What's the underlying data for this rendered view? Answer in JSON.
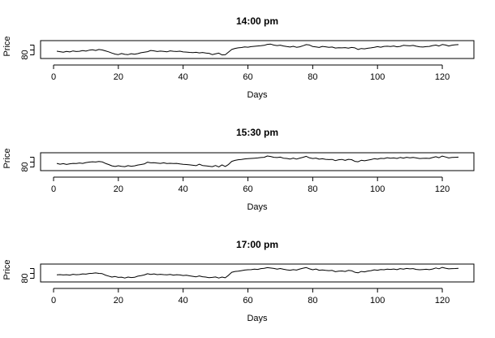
{
  "chart_data": [
    {
      "type": "line",
      "title": "14:00 pm",
      "xlabel": "Days",
      "ylabel": "Price",
      "xlim": [
        1,
        125
      ],
      "ylim": [
        79,
        89
      ],
      "xticks": [
        0,
        20,
        40,
        60,
        80,
        100,
        120
      ],
      "yticks": [
        80
      ],
      "grid": false,
      "series": [
        {
          "x": [
            1,
            2,
            3,
            4,
            5,
            6,
            7,
            8,
            9,
            10,
            11,
            12,
            13,
            14,
            15,
            16,
            17,
            18,
            19,
            20,
            21,
            22,
            23,
            24,
            25,
            26,
            27,
            28,
            29,
            30,
            31,
            32,
            33,
            34,
            35,
            36,
            37,
            38,
            39,
            40,
            41,
            42,
            43,
            44,
            45,
            46,
            47,
            48,
            49,
            50,
            51,
            52,
            53,
            54,
            55,
            56,
            57,
            58,
            59,
            60,
            61,
            62,
            63,
            64,
            65,
            66,
            67,
            68,
            69,
            70,
            71,
            72,
            73,
            74,
            75,
            76,
            77,
            78,
            79,
            80,
            81,
            82,
            83,
            84,
            85,
            86,
            87,
            88,
            89,
            90,
            91,
            92,
            93,
            94,
            95,
            96,
            97,
            98,
            99,
            100,
            101,
            102,
            103,
            104,
            105,
            106,
            107,
            108,
            109,
            110,
            111,
            112,
            113,
            114,
            115,
            116,
            117,
            118,
            119,
            120,
            121,
            122,
            123,
            124,
            125
          ],
          "values": [
            83.0,
            82.6,
            82.2,
            82.8,
            82.4,
            83.2,
            82.7,
            82.9,
            83.5,
            83.1,
            83.8,
            84.2,
            83.6,
            84.4,
            84.0,
            83.3,
            82.5,
            81.5,
            80.6,
            80.2,
            81.1,
            80.4,
            80.2,
            80.9,
            80.5,
            81.0,
            81.7,
            82.2,
            82.6,
            83.6,
            83.3,
            82.7,
            83.1,
            82.8,
            82.5,
            83.3,
            82.9,
            82.7,
            83.0,
            82.4,
            82.3,
            82.0,
            81.8,
            82.1,
            81.6,
            81.9,
            81.5,
            81.3,
            80.2,
            80.8,
            81.4,
            79.9,
            80.1,
            82.3,
            84.4,
            85.3,
            85.7,
            86.0,
            86.5,
            86.3,
            86.7,
            87.0,
            87.3,
            87.5,
            87.8,
            88.6,
            88.8,
            88.0,
            87.6,
            87.9,
            87.3,
            86.8,
            86.4,
            87.0,
            86.2,
            86.6,
            87.5,
            88.4,
            88.1,
            86.8,
            86.5,
            86.1,
            86.9,
            86.6,
            86.2,
            86.4,
            85.6,
            85.8,
            85.7,
            85.9,
            85.5,
            86.1,
            85.7,
            84.4,
            85.2,
            84.9,
            85.4,
            85.7,
            86.2,
            86.7,
            86.3,
            86.9,
            87.1,
            86.8,
            87.3,
            86.6,
            86.9,
            87.8,
            87.6,
            87.4,
            87.7,
            87.1,
            86.6,
            86.4,
            86.7,
            86.9,
            87.6,
            88.0,
            87.3,
            88.5,
            88.1,
            87.3,
            87.9,
            88.3,
            88.4
          ]
        }
      ]
    },
    {
      "type": "line",
      "title": "15:30 pm",
      "xlabel": "Days",
      "ylabel": "Price",
      "xlim": [
        1,
        125
      ],
      "ylim": [
        79,
        89
      ],
      "xticks": [
        0,
        20,
        40,
        60,
        80,
        100,
        120
      ],
      "yticks": [
        80
      ],
      "grid": false,
      "series": [
        {
          "x": [
            1,
            2,
            3,
            4,
            5,
            6,
            7,
            8,
            9,
            10,
            11,
            12,
            13,
            14,
            15,
            16,
            17,
            18,
            19,
            20,
            21,
            22,
            23,
            24,
            25,
            26,
            27,
            28,
            29,
            30,
            31,
            32,
            33,
            34,
            35,
            36,
            37,
            38,
            39,
            40,
            41,
            42,
            43,
            44,
            45,
            46,
            47,
            48,
            49,
            50,
            51,
            52,
            53,
            54,
            55,
            56,
            57,
            58,
            59,
            60,
            61,
            62,
            63,
            64,
            65,
            66,
            67,
            68,
            69,
            70,
            71,
            72,
            73,
            74,
            75,
            76,
            77,
            78,
            79,
            80,
            81,
            82,
            83,
            84,
            85,
            86,
            87,
            88,
            89,
            90,
            91,
            92,
            93,
            94,
            95,
            96,
            97,
            98,
            99,
            100,
            101,
            102,
            103,
            104,
            105,
            106,
            107,
            108,
            109,
            110,
            111,
            112,
            113,
            114,
            115,
            116,
            117,
            118,
            119,
            120,
            121,
            122,
            123,
            124,
            125
          ],
          "values": [
            82.9,
            82.3,
            82.7,
            82.1,
            82.6,
            82.9,
            82.8,
            83.3,
            82.9,
            83.6,
            84.0,
            84.3,
            84.1,
            84.5,
            84.2,
            82.9,
            82.0,
            80.9,
            80.4,
            81.0,
            80.5,
            80.3,
            81.1,
            80.6,
            80.9,
            81.6,
            82.0,
            82.5,
            83.9,
            83.4,
            83.5,
            83.2,
            82.9,
            83.4,
            82.8,
            83.0,
            82.8,
            82.9,
            82.5,
            82.2,
            82.0,
            81.7,
            81.4,
            81.1,
            82.3,
            81.2,
            80.9,
            80.6,
            80.3,
            81.2,
            80.1,
            81.7,
            80.4,
            82.1,
            84.6,
            85.4,
            85.9,
            86.2,
            86.6,
            86.8,
            87.0,
            87.2,
            87.4,
            87.7,
            87.9,
            89.0,
            88.6,
            87.9,
            87.7,
            88.1,
            87.2,
            87.0,
            86.5,
            87.3,
            86.5,
            87.3,
            87.9,
            88.7,
            87.5,
            86.9,
            87.3,
            86.4,
            86.7,
            86.3,
            86.1,
            86.2,
            85.2,
            85.9,
            86.2,
            85.4,
            86.3,
            86.0,
            84.6,
            84.3,
            85.5,
            85.1,
            85.6,
            86.1,
            86.8,
            86.4,
            87.1,
            86.9,
            87.6,
            87.2,
            87.4,
            87.0,
            87.8,
            87.3,
            87.9,
            87.5,
            87.8,
            87.4,
            86.9,
            87.1,
            87.2,
            87.0,
            87.7,
            88.4,
            87.6,
            88.9,
            88.2,
            87.4,
            87.8,
            87.9,
            88.1
          ]
        }
      ]
    },
    {
      "type": "line",
      "title": "17:00 pm",
      "xlabel": "Days",
      "ylabel": "Price",
      "xlim": [
        1,
        125
      ],
      "ylim": [
        79,
        89
      ],
      "xticks": [
        0,
        20,
        40,
        60,
        80,
        100,
        120
      ],
      "yticks": [
        80
      ],
      "grid": false,
      "series": [
        {
          "x": [
            1,
            2,
            3,
            4,
            5,
            6,
            7,
            8,
            9,
            10,
            11,
            12,
            13,
            14,
            15,
            16,
            17,
            18,
            19,
            20,
            21,
            22,
            23,
            24,
            25,
            26,
            27,
            28,
            29,
            30,
            31,
            32,
            33,
            34,
            35,
            36,
            37,
            38,
            39,
            40,
            41,
            42,
            43,
            44,
            45,
            46,
            47,
            48,
            49,
            50,
            51,
            52,
            53,
            54,
            55,
            56,
            57,
            58,
            59,
            60,
            61,
            62,
            63,
            64,
            65,
            66,
            67,
            68,
            69,
            70,
            71,
            72,
            73,
            74,
            75,
            76,
            77,
            78,
            79,
            80,
            81,
            82,
            83,
            84,
            85,
            86,
            87,
            88,
            89,
            90,
            91,
            92,
            93,
            94,
            95,
            96,
            97,
            98,
            99,
            100,
            101,
            102,
            103,
            104,
            105,
            106,
            107,
            108,
            109,
            110,
            111,
            112,
            113,
            114,
            115,
            116,
            117,
            118,
            119,
            120,
            121,
            122,
            123,
            124,
            125
          ],
          "values": [
            82.8,
            83.0,
            82.7,
            82.9,
            82.6,
            83.3,
            82.9,
            83.1,
            83.6,
            83.4,
            83.9,
            84.1,
            84.4,
            84.0,
            83.8,
            82.6,
            81.8,
            81.0,
            81.5,
            80.7,
            80.9,
            80.2,
            81.0,
            80.6,
            80.8,
            81.7,
            82.2,
            82.7,
            83.7,
            83.2,
            83.6,
            83.0,
            83.3,
            83.0,
            82.8,
            83.2,
            82.6,
            82.9,
            82.7,
            82.3,
            82.5,
            82.0,
            81.6,
            81.2,
            81.9,
            81.3,
            81.0,
            80.5,
            80.7,
            81.1,
            80.2,
            81.0,
            80.4,
            82.5,
            84.9,
            85.6,
            85.8,
            86.3,
            86.7,
            87.0,
            87.1,
            87.5,
            87.3,
            87.9,
            88.2,
            88.7,
            88.4,
            88.1,
            87.5,
            88.0,
            87.4,
            86.9,
            86.6,
            87.1,
            86.7,
            87.6,
            88.3,
            88.8,
            87.7,
            87.0,
            87.6,
            86.6,
            86.8,
            86.5,
            86.3,
            86.5,
            85.4,
            85.8,
            86.0,
            85.6,
            86.5,
            86.2,
            84.9,
            84.5,
            85.6,
            85.3,
            85.9,
            86.3,
            86.9,
            86.6,
            87.2,
            87.0,
            87.5,
            87.3,
            87.6,
            87.1,
            87.9,
            87.5,
            88.1,
            87.7,
            87.9,
            87.3,
            87.0,
            87.2,
            87.4,
            87.1,
            87.6,
            88.5,
            87.8,
            88.9,
            88.3,
            87.7,
            87.9,
            88.0,
            88.2
          ]
        }
      ]
    }
  ]
}
